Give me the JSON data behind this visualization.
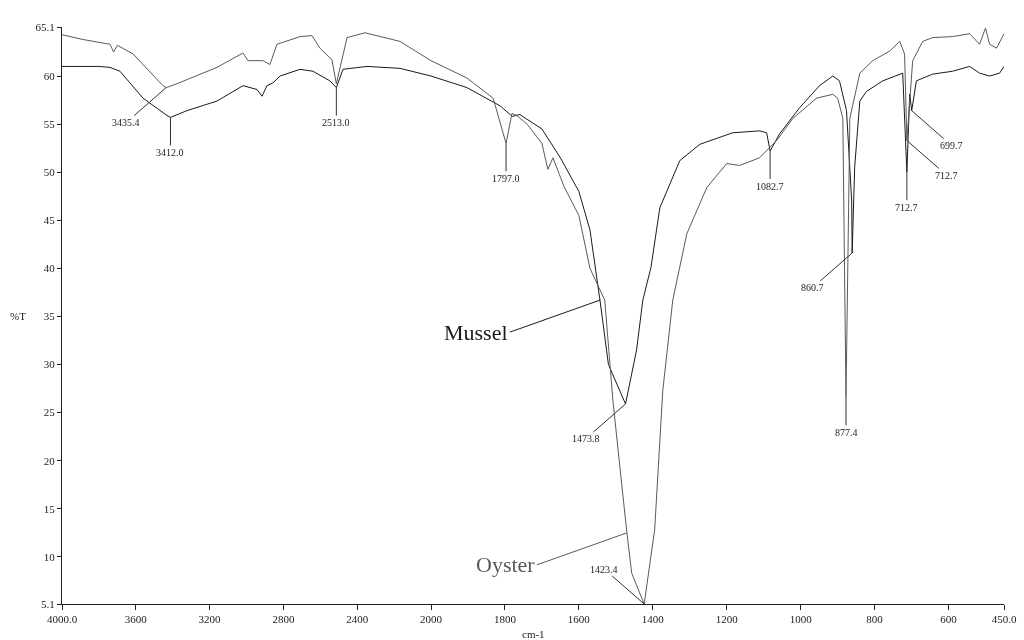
{
  "chart_data": [
    {
      "type": "line",
      "ylabel": "%T",
      "xlim": [
        4000,
        2000
      ],
      "xticks": [
        {
          "value": 4000,
          "label": "4000.0"
        },
        3600,
        3200,
        2800,
        2400,
        2000
      ],
      "ylim": [
        5.1,
        65.1
      ],
      "yticks": [
        5.1,
        10,
        15,
        20,
        25,
        30,
        35,
        40,
        45,
        50,
        55,
        60,
        65.1
      ],
      "grid": false,
      "legend": false,
      "marker": "none",
      "line_style": "solid",
      "series": [
        {
          "color": "#1a1a1a",
          "x": [
            4000,
            3800,
            3740,
            3686,
            3561,
            3431,
            3412,
            3323,
            3160,
            3019,
            2943,
            2916,
            2889,
            2856,
            2818,
            2710,
            2640,
            2548,
            2513,
            2477,
            2347,
            2168,
            2000
          ],
          "values": [
            61.0,
            61.0,
            60.9,
            60.5,
            57.7,
            55.9,
            55.7,
            56.4,
            57.4,
            59.0,
            58.6,
            57.9,
            59.0,
            59.3,
            60.0,
            60.7,
            60.5,
            59.5,
            58.8,
            60.7,
            61.0,
            60.8,
            60.0
          ]
        },
        {
          "color": "#5a5a5a",
          "x": [
            4000,
            3886,
            3740,
            3720,
            3700,
            3615,
            3453,
            3435.4,
            3377,
            3160,
            3019,
            2992,
            2911,
            2873,
            2835,
            2710,
            2645,
            2602,
            2537,
            2513,
            2455,
            2358,
            2168,
            2000
          ],
          "values": [
            64.3,
            63.8,
            63.3,
            62.5,
            63.2,
            62.3,
            59.0,
            58.8,
            59.2,
            60.9,
            62.4,
            61.6,
            61.6,
            61.2,
            63.3,
            64.1,
            64.2,
            62.9,
            61.7,
            59.2,
            64.0,
            64.5,
            63.6,
            61.6
          ]
        }
      ],
      "annotations": [
        {
          "text": "3435.4",
          "x": 3435.4,
          "y": 58.8
        },
        {
          "text": "3412.0",
          "x": 3412,
          "y": 55.7
        },
        {
          "text": "2513.0",
          "x": 2513,
          "y": 58.8
        }
      ]
    },
    {
      "type": "line",
      "xlabel": "cm-1",
      "xlim": [
        2000,
        450
      ],
      "xticks": [
        1800,
        1600,
        1400,
        1200,
        1000,
        800,
        600,
        {
          "value": 450,
          "label": "450.0"
        }
      ],
      "ylim": [
        5.1,
        65.1
      ],
      "yticks": [
        5.1,
        10,
        15,
        20,
        25,
        30,
        35,
        40,
        45,
        50,
        55,
        60,
        65.1
      ],
      "tick_labels": "x",
      "grid": false,
      "legend": false,
      "marker": "none",
      "line_style": "solid",
      "series": [
        {
          "name": "Mussel",
          "color": "#1a1a1a",
          "x": [
            2000,
            1903,
            1813,
            1780,
            1760,
            1700,
            1650,
            1600,
            1570,
            1543,
            1520,
            1473.8,
            1444,
            1427,
            1405,
            1381,
            1327,
            1273,
            1184,
            1111,
            1092,
            1082.7,
            1057,
            1003,
            949,
            913,
            895,
            876,
            862,
            860.7,
            854,
            840,
            822,
            778,
            724,
            712.7,
            705,
            699.7,
            687,
            643,
            589,
            543,
            516,
            489,
            462,
            450
          ],
          "values": [
            60.0,
            58.8,
            56.9,
            55.8,
            56.0,
            54.5,
            51.5,
            48.0,
            44.0,
            36.7,
            30.0,
            25.9,
            31.5,
            36.7,
            40.1,
            46.3,
            51.2,
            52.9,
            54.1,
            54.3,
            54.1,
            52.2,
            54.0,
            56.7,
            59.0,
            60.0,
            59.5,
            56.4,
            47.0,
            41.6,
            50.5,
            57.4,
            58.4,
            59.5,
            60.3,
            50.0,
            58.1,
            56.4,
            59.5,
            60.2,
            60.5,
            61.0,
            60.3,
            60.0,
            60.3,
            61.0
          ]
        },
        {
          "name": "Oyster",
          "color": "#5a5a5a",
          "x": [
            2000,
            1903,
            1832,
            1797,
            1781,
            1768,
            1740,
            1700,
            1684,
            1670,
            1640,
            1600,
            1570,
            1530,
            1508,
            1489,
            1470,
            1457,
            1423.4,
            1395,
            1373,
            1346,
            1308,
            1254,
            1200,
            1165,
            1111,
            1065,
            1021,
            957,
            913,
            900,
            886,
            877.4,
            867,
            840,
            805,
            759,
            732,
            719,
            712.7,
            697,
            670,
            643,
            589,
            543,
            516,
            500,
            489,
            470,
            450
          ],
          "values": [
            61.6,
            59.8,
            57.7,
            53.0,
            56.1,
            55.9,
            55.0,
            53.0,
            50.3,
            51.5,
            48.5,
            45.5,
            40.0,
            36.7,
            26.3,
            19.3,
            12.5,
            8.3,
            5.1,
            12.8,
            27.3,
            36.7,
            43.6,
            48.4,
            50.9,
            50.7,
            51.5,
            53.3,
            55.6,
            57.7,
            58.1,
            57.7,
            55.6,
            26.6,
            55.6,
            60.3,
            61.6,
            62.6,
            63.6,
            62.3,
            53.3,
            61.6,
            63.6,
            64.0,
            64.1,
            64.4,
            63.3,
            65.0,
            63.3,
            62.9,
            64.4
          ]
        }
      ],
      "annotations": [
        {
          "text": "1797.0",
          "x": 1797,
          "y": 53.0
        },
        {
          "text": "1473.8",
          "x": 1473.8,
          "y": 25.9
        },
        {
          "text": "1423.4",
          "x": 1423.4,
          "y": 5.1
        },
        {
          "text": "1082.7",
          "x": 1082.7,
          "y": 52.2
        },
        {
          "text": "877.4",
          "x": 877.4,
          "y": 26.6
        },
        {
          "text": "860.7",
          "x": 860.7,
          "y": 41.6
        },
        {
          "text": "712.7",
          "x": 712.7,
          "y": 53.3
        },
        {
          "text": "712.7",
          "x": 712.7,
          "y": 50.0
        },
        {
          "text": "699.7",
          "x": 699.7,
          "y": 56.4
        }
      ]
    }
  ]
}
